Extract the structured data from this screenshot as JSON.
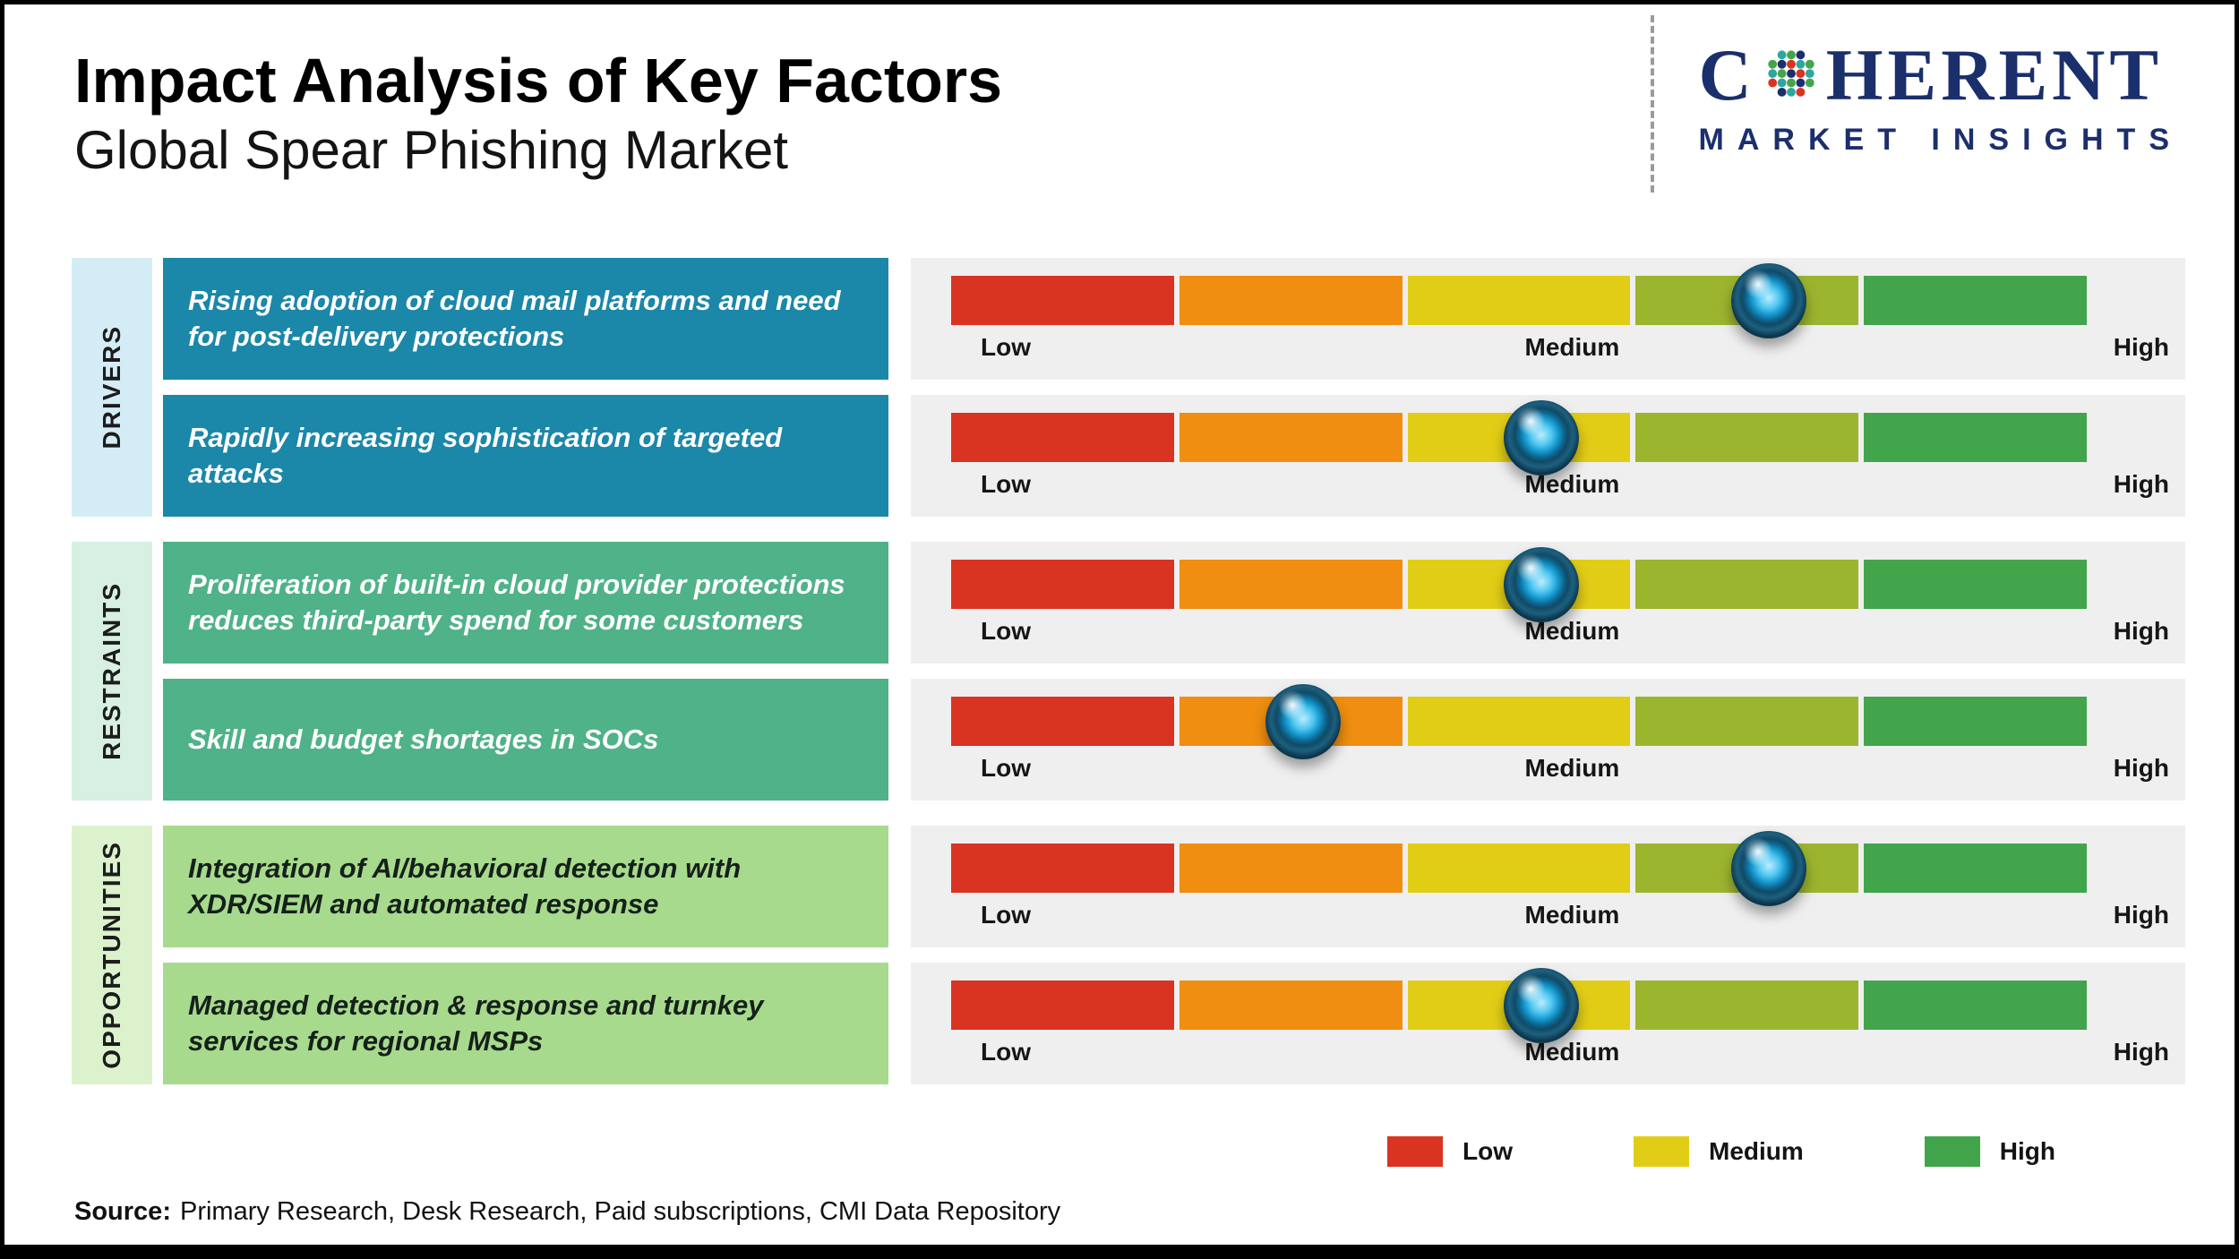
{
  "header": {
    "title": "Impact Analysis of Key Factors",
    "subtitle": "Global Spear Phishing Market"
  },
  "logo": {
    "brand_c": "C",
    "brand_rest": "HERENT",
    "tagline": "MARKET INSIGHTS"
  },
  "scale": [
    "Low",
    "Medium",
    "High"
  ],
  "groups": [
    {
      "label": "DRIVERS",
      "strip_color": "#d4ecf6",
      "box_color": "#1b87a9",
      "text_color": "#ffffff"
    },
    {
      "label": "RESTRAINTS",
      "strip_color": "#d7f0e2",
      "box_color": "#4fb288",
      "text_color": "#ffffff"
    },
    {
      "label": "OPPORTUNITIES",
      "strip_color": "#dbf2cd",
      "box_color": "#a7da8d",
      "text_color": "#15201a"
    }
  ],
  "chart_data": {
    "type": "bar",
    "title": "Impact Analysis of Key Factors",
    "subtitle": "Global Spear Phishing Market",
    "x_scale_labels": [
      "Low",
      "Medium",
      "High"
    ],
    "x_range_percent": [
      0,
      100
    ],
    "segment_colors": [
      "#d93322",
      "#ef8e10",
      "#e2cd16",
      "#9cb52f",
      "#42a54b"
    ],
    "legend_position": "bottom-right",
    "rows": [
      {
        "group": "Drivers",
        "factor": "Rising adoption of cloud mail platforms and need for post-delivery protections",
        "impact_percent": 72,
        "impact_level": "Medium-High"
      },
      {
        "group": "Drivers",
        "factor": "Rapidly increasing sophistication of targeted attacks",
        "impact_percent": 52,
        "impact_level": "Medium"
      },
      {
        "group": "Restraints",
        "factor": "Proliferation of built-in cloud provider protections reduces third-party spend for some customers",
        "impact_percent": 52,
        "impact_level": "Medium"
      },
      {
        "group": "Restraints",
        "factor": "Skill and budget shortages in SOCs",
        "impact_percent": 31,
        "impact_level": "Low-Medium"
      },
      {
        "group": "Opportunities",
        "factor": "Integration of AI/behavioral detection with XDR/SIEM and automated response",
        "impact_percent": 72,
        "impact_level": "Medium-High"
      },
      {
        "group": "Opportunities",
        "factor": "Managed detection & response and turnkey services for regional MSPs",
        "impact_percent": 52,
        "impact_level": "Medium"
      }
    ]
  },
  "legend": {
    "items": [
      {
        "label": "Low",
        "color": "#d93322"
      },
      {
        "label": "Medium",
        "color": "#e2cd16"
      },
      {
        "label": "High",
        "color": "#42a54b"
      }
    ]
  },
  "source": {
    "label": "Source:",
    "text": "Primary Research, Desk Research, Paid subscriptions, CMI Data Repository"
  }
}
